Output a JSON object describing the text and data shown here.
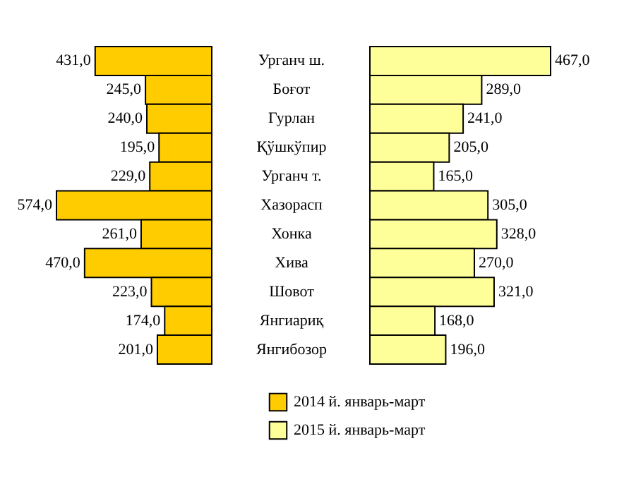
{
  "chart_data": [
    {
      "type": "bar",
      "orientation": "horizontal",
      "categories": [
        "Урганч ш.",
        "Боғот",
        "Гурлан",
        "Қўшкўпир",
        "Урганч т.",
        "Хазорасп",
        "Хонка",
        "Хива",
        "Шовот",
        "Янгиариқ",
        "Янгибозор"
      ],
      "tick_labels": "y",
      "legend": "bottom",
      "series": [
        {
          "name": "2014 й. январь-март",
          "color": "#ffcc00",
          "values": [
            431,
            245,
            240,
            195,
            229,
            574,
            261,
            470,
            223,
            174,
            201
          ],
          "value_labels": [
            "431,0",
            "245,0",
            "240,0",
            "195,0",
            "229,0",
            "574,0",
            "261,0",
            "470,0",
            "223,0",
            "174,0",
            "201,0"
          ]
        }
      ]
    },
    {
      "type": "bar",
      "orientation": "horizontal",
      "categories": [
        null,
        null,
        null,
        null,
        null,
        null,
        null,
        null,
        null,
        null,
        null
      ],
      "tick_labels": false,
      "legend": "bottom",
      "series": [
        {
          "name": "2015 й. январь-март",
          "color": "#ffff99",
          "values": [
            467,
            289,
            241,
            205,
            165,
            305,
            328,
            270,
            321,
            168,
            196
          ],
          "value_labels": [
            "467,0",
            "289,0",
            "241,0",
            "205,0",
            "165,0",
            "305,0",
            "328,0",
            "270,0",
            "321,0",
            "168,0",
            "196,0"
          ]
        }
      ]
    }
  ]
}
